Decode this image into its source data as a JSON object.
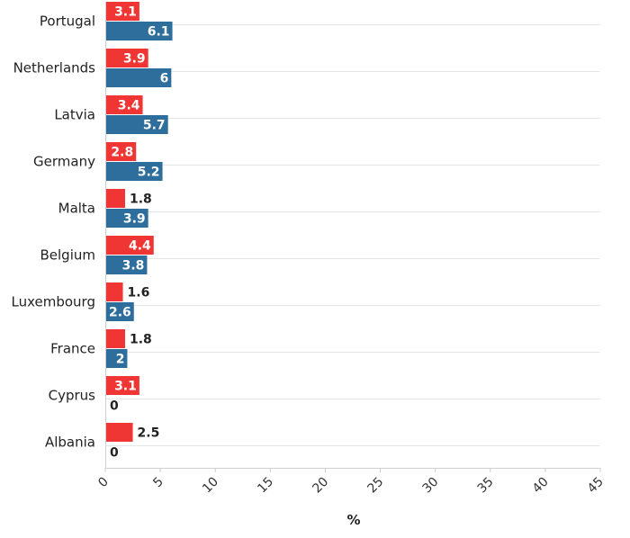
{
  "chart_data": {
    "type": "bar",
    "orientation": "horizontal",
    "categories": [
      "Portugal",
      "Netherlands",
      "Latvia",
      "Germany",
      "Malta",
      "Belgium",
      "Luxembourg",
      "France",
      "Cyprus",
      "Albania"
    ],
    "series": [
      {
        "values": [
          3.1,
          3.9,
          3.4,
          2.8,
          1.8,
          4.4,
          1.6,
          1.8,
          3.1,
          2.5
        ],
        "color": "#f03535"
      },
      {
        "values": [
          6.1,
          6,
          5.7,
          5.2,
          3.9,
          3.8,
          2.6,
          2,
          0,
          0
        ],
        "color": "#2d6e9c"
      }
    ],
    "value_labels": [
      [
        "3.1",
        "3.9",
        "3.4",
        "2.8",
        "1.8",
        "4.4",
        "1.6",
        "1.8",
        "3.1",
        "2.5"
      ],
      [
        "6.1",
        "6",
        "5.7",
        "5.2",
        "3.9",
        "3.8",
        "2.6",
        "2",
        "0",
        "0"
      ]
    ],
    "xlabel": "%",
    "xlim": [
      0,
      45
    ],
    "xticks": [
      0,
      5,
      10,
      15,
      20,
      25,
      30,
      35,
      40,
      45
    ],
    "xtick_labels": [
      "0",
      "5",
      "10",
      "15",
      "20",
      "25",
      "30",
      "35",
      "40",
      "45"
    ],
    "grid": true,
    "legend": "none"
  }
}
